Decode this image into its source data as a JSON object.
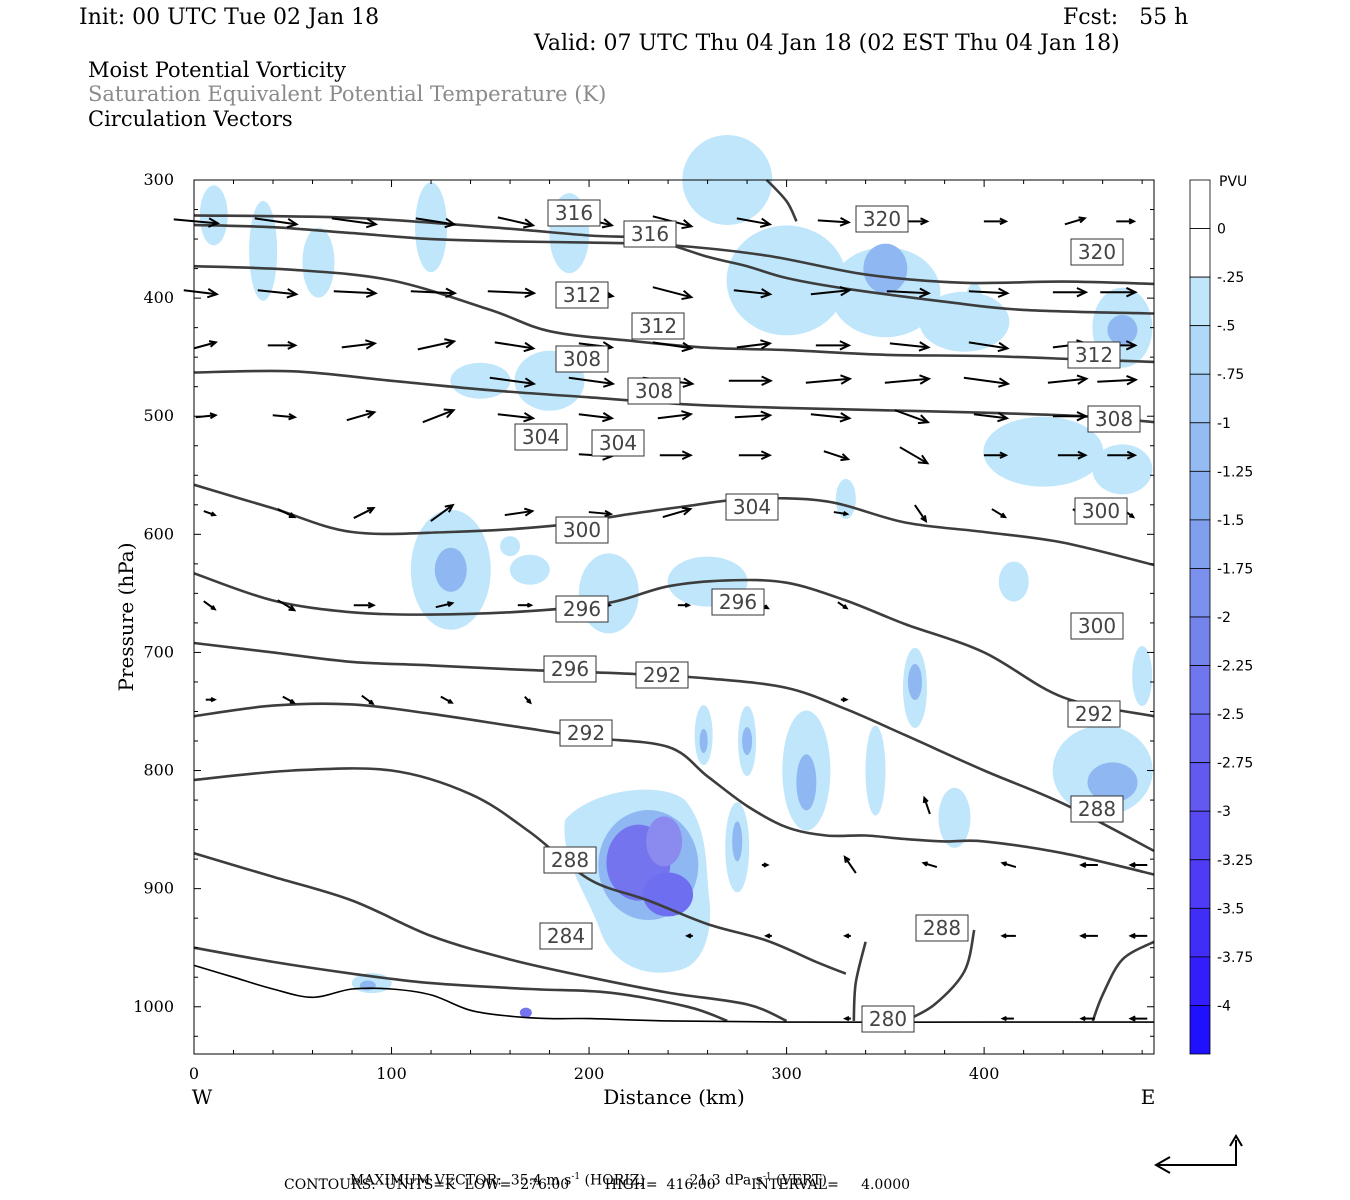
{
  "header": {
    "init": "Init: 00 UTC Tue 02 Jan 18",
    "fcst": "Fcst:   55 h",
    "valid": "Valid: 07 UTC Thu 04 Jan 18 (02 EST Thu 04 Jan 18)",
    "field1": "Moist Potential Vorticity",
    "field2": "Saturation Equivalent Potential Temperature (K)",
    "field3": "Circulation Vectors"
  },
  "footer": {
    "max_vector_prefix": "MAXIMUM VECTOR:  35.4 m s",
    "max_vector_mid": " (HORIZ)          21.3 dPa s",
    "max_vector_end": " (VERT)",
    "superscript": "-1",
    "contours": "CONTOURS:  UNITS=K  LOW=  276.00        HIGH=  416.00        INTERVAL=     4.0000"
  },
  "colors": {
    "pv_light": "#bfe6fb",
    "pv_mid": "#8fb7f2",
    "pv_dark": "#7474ee",
    "contour": "#3d3d3d",
    "vector": "#000000"
  },
  "chart_data": {
    "type": "cross-section",
    "xlabel": "Distance (km)",
    "ylabel": "Pressure (hPa)",
    "xlim": [
      0,
      486
    ],
    "ylim": [
      1040,
      300
    ],
    "x_ticks": [
      "0",
      "100",
      "200",
      "300",
      "400"
    ],
    "x_tick_values": [
      0,
      100,
      200,
      300,
      400
    ],
    "y_ticks": [
      "300",
      "400",
      "500",
      "600",
      "700",
      "800",
      "900",
      "1000"
    ],
    "y_tick_values": [
      300,
      400,
      500,
      600,
      700,
      800,
      900,
      1000
    ],
    "x_end_labels": {
      "left": "W",
      "right": "E"
    },
    "colorbar": {
      "unit": "PVU",
      "labels": [
        "0",
        "-.25",
        "-.5",
        "-.75",
        "-1",
        "-1.25",
        "-1.5",
        "-1.75",
        "-2",
        "-2.25",
        "-2.5",
        "-2.75",
        "-3",
        "-3.25",
        "-3.5",
        "-3.75",
        "-4"
      ],
      "colors": [
        "#ffffff",
        "#bfe6fb",
        "#b0d8f8",
        "#a2caf5",
        "#95bcf2",
        "#89aef0",
        "#80a0ee",
        "#7a92ed",
        "#7584ed",
        "#7076ee",
        "#6a68ef",
        "#6259f1",
        "#584af3",
        "#4d3bf5",
        "#412df8",
        "#331efb",
        "#1f10ff"
      ]
    },
    "contour_levels": [
      "316",
      "316",
      "320",
      "320",
      "312",
      "312",
      "312",
      "308",
      "308",
      "308",
      "304",
      "304",
      "304",
      "300",
      "300",
      "300",
      "296",
      "296",
      "296",
      "292",
      "292",
      "292",
      "288",
      "288",
      "288",
      "284",
      "280"
    ],
    "contours": [
      {
        "level": 320,
        "points": [
          [
            0,
            338
          ],
          [
            40,
            340
          ],
          [
            80,
            345
          ],
          [
            120,
            350
          ],
          [
            160,
            352
          ],
          [
            200,
            353
          ],
          [
            240,
            355
          ],
          [
            290,
            364
          ],
          [
            340,
            380
          ],
          [
            390,
            387
          ],
          [
            440,
            386
          ],
          [
            486,
            388
          ]
        ]
      },
      {
        "level": 316,
        "points": [
          [
            0,
            330
          ],
          [
            80,
            332
          ],
          [
            150,
            340
          ],
          [
            200,
            347
          ],
          [
            230,
            350
          ],
          [
            260,
            365
          ],
          [
            280,
            373
          ],
          [
            300,
            383
          ],
          [
            330,
            392
          ],
          [
            380,
            403
          ],
          [
            420,
            410
          ],
          [
            486,
            413
          ]
        ]
      },
      {
        "level": 312,
        "points": [
          [
            0,
            373
          ],
          [
            50,
            376
          ],
          [
            100,
            385
          ],
          [
            150,
            410
          ],
          [
            180,
            428
          ],
          [
            220,
            436
          ],
          [
            260,
            442
          ],
          [
            300,
            444
          ],
          [
            350,
            448
          ],
          [
            400,
            449
          ],
          [
            450,
            452
          ],
          [
            486,
            454
          ]
        ]
      },
      {
        "level": 308,
        "points": [
          [
            0,
            463
          ],
          [
            50,
            462
          ],
          [
            100,
            470
          ],
          [
            150,
            478
          ],
          [
            200,
            484
          ],
          [
            250,
            490
          ],
          [
            300,
            493
          ],
          [
            350,
            495
          ],
          [
            400,
            497
          ],
          [
            450,
            500
          ],
          [
            486,
            505
          ]
        ]
      },
      {
        "level": 304,
        "points": [
          [
            0,
            558
          ],
          [
            40,
            578
          ],
          [
            80,
            598
          ],
          [
            130,
            598
          ],
          [
            180,
            593
          ],
          [
            220,
            583
          ],
          [
            250,
            576
          ],
          [
            280,
            570
          ],
          [
            320,
            572
          ],
          [
            360,
            590
          ],
          [
            400,
            598
          ],
          [
            440,
            607
          ],
          [
            486,
            626
          ]
        ]
      },
      {
        "level": 300,
        "points": [
          [
            0,
            633
          ],
          [
            40,
            656
          ],
          [
            80,
            666
          ],
          [
            120,
            668
          ],
          [
            170,
            665
          ],
          [
            210,
            658
          ],
          [
            240,
            644
          ],
          [
            270,
            639
          ],
          [
            300,
            641
          ],
          [
            330,
            656
          ],
          [
            360,
            676
          ],
          [
            400,
            700
          ],
          [
            440,
            738
          ],
          [
            486,
            754
          ]
        ]
      },
      {
        "level": 296,
        "points": [
          [
            0,
            692
          ],
          [
            40,
            700
          ],
          [
            80,
            708
          ],
          [
            120,
            711
          ],
          [
            170,
            715
          ],
          [
            220,
            718
          ],
          [
            260,
            722
          ],
          [
            300,
            730
          ],
          [
            330,
            748
          ],
          [
            360,
            770
          ],
          [
            400,
            800
          ],
          [
            440,
            828
          ],
          [
            486,
            868
          ]
        ]
      },
      {
        "level": 292,
        "points": [
          [
            0,
            754
          ],
          [
            40,
            745
          ],
          [
            80,
            744
          ],
          [
            120,
            752
          ],
          [
            160,
            762
          ],
          [
            200,
            772
          ],
          [
            240,
            780
          ],
          [
            260,
            805
          ],
          [
            280,
            830
          ],
          [
            300,
            848
          ],
          [
            320,
            855
          ],
          [
            340,
            855
          ],
          [
            360,
            858
          ],
          [
            380,
            860
          ],
          [
            400,
            860
          ],
          [
            440,
            870
          ],
          [
            486,
            888
          ]
        ]
      },
      {
        "level": 288,
        "points": [
          [
            0,
            808
          ],
          [
            50,
            800
          ],
          [
            100,
            800
          ],
          [
            140,
            820
          ],
          [
            170,
            852
          ],
          [
            200,
            892
          ],
          [
            230,
            910
          ],
          [
            260,
            930
          ],
          [
            290,
            944
          ],
          [
            315,
            962
          ],
          [
            330,
            972
          ]
        ]
      },
      {
        "level": 284,
        "points": [
          [
            0,
            870
          ],
          [
            40,
            890
          ],
          [
            80,
            910
          ],
          [
            120,
            940
          ],
          [
            160,
            960
          ],
          [
            200,
            975
          ],
          [
            240,
            988
          ],
          [
            280,
            998
          ],
          [
            300,
            1012
          ]
        ]
      },
      {
        "level": 280,
        "points": [
          [
            0,
            950
          ],
          [
            40,
            962
          ],
          [
            80,
            972
          ],
          [
            120,
            980
          ],
          [
            170,
            985
          ],
          [
            210,
            988
          ],
          [
            250,
            1000
          ],
          [
            270,
            1012
          ]
        ]
      }
    ],
    "terrain": [
      [
        0,
        965
      ],
      [
        20,
        975
      ],
      [
        40,
        985
      ],
      [
        60,
        992
      ],
      [
        80,
        985
      ],
      [
        100,
        985
      ],
      [
        120,
        990
      ],
      [
        140,
        1003
      ],
      [
        160,
        1008
      ],
      [
        180,
        1010
      ],
      [
        200,
        1010
      ],
      [
        240,
        1012
      ],
      [
        300,
        1013
      ],
      [
        400,
        1013
      ],
      [
        486,
        1013
      ]
    ],
    "pv_regions": [
      {
        "x": 225,
        "p": 880,
        "level": -3.0
      },
      {
        "x": 236,
        "p": 905,
        "level": -2.75
      },
      {
        "x": 240,
        "p": 860,
        "level": -2.0
      },
      {
        "x": 350,
        "p": 380,
        "level": -1.5
      },
      {
        "x": 300,
        "p": 410,
        "level": -1.0
      },
      {
        "x": 472,
        "p": 425,
        "level": -1.5
      },
      {
        "x": 130,
        "p": 630,
        "level": -1.0
      },
      {
        "x": 310,
        "p": 795,
        "level": -1.25
      },
      {
        "x": 280,
        "p": 780,
        "level": -1.0
      },
      {
        "x": 258,
        "p": 780,
        "level": -1.0
      },
      {
        "x": 360,
        "p": 725,
        "level": -1.0
      },
      {
        "x": 450,
        "p": 810,
        "level": -0.75
      }
    ]
  }
}
